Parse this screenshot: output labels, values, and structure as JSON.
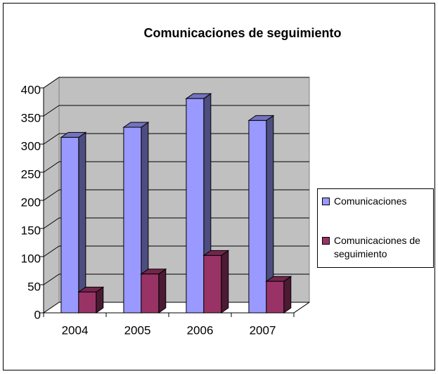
{
  "chart_data": {
    "type": "bar",
    "title": "Comunicaciones de seguimiento",
    "categories": [
      "2004",
      "2005",
      "2006",
      "2007"
    ],
    "series": [
      {
        "name": "Comunicaciones",
        "color": "#9999ff",
        "values": [
          312,
          330,
          381,
          342
        ]
      },
      {
        "name": "Comunicaciones de seguimiento",
        "color": "#993366",
        "values": [
          37,
          69,
          102,
          56
        ]
      }
    ],
    "ylim": [
      0,
      400
    ],
    "yticks": [
      0,
      50,
      100,
      150,
      200,
      250,
      300,
      350,
      400
    ],
    "grid": true,
    "legend": "right"
  }
}
